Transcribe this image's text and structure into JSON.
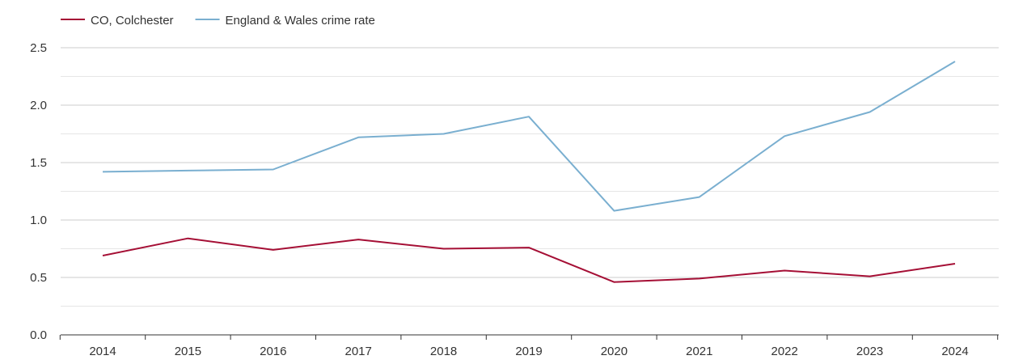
{
  "chart_data": {
    "type": "line",
    "title": "",
    "xlabel": "",
    "ylabel": "",
    "x": [
      "2014",
      "2015",
      "2016",
      "2017",
      "2018",
      "2019",
      "2020",
      "2021",
      "2022",
      "2023",
      "2024"
    ],
    "ylim": [
      0,
      2.5
    ],
    "y_ticks": [
      "0.0",
      "0.5",
      "1.0",
      "1.5",
      "2.0",
      "2.5"
    ],
    "grid": true,
    "legend_position": "top-left",
    "series": [
      {
        "name": "CO, Colchester",
        "color": "#a50f35",
        "values": [
          0.69,
          0.84,
          0.74,
          0.83,
          0.75,
          0.76,
          0.46,
          0.49,
          0.56,
          0.51,
          0.62
        ]
      },
      {
        "name": "England & Wales crime rate",
        "color": "#7aafd0",
        "values": [
          1.42,
          1.43,
          1.44,
          1.72,
          1.75,
          1.9,
          1.08,
          1.2,
          1.73,
          1.94,
          2.38
        ]
      }
    ]
  }
}
